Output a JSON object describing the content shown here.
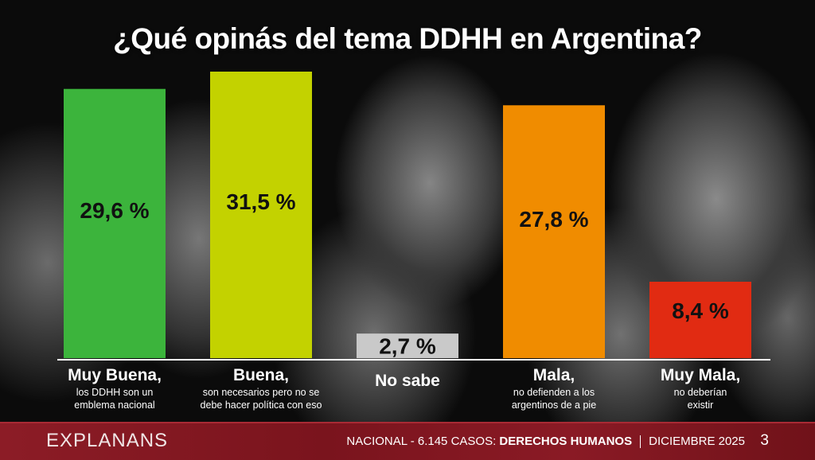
{
  "title": "¿Qué opinás del tema DDHH en Argentina?",
  "chart_data": {
    "type": "bar",
    "title": "¿Qué opinás del tema DDHH en Argentina?",
    "unit": "%",
    "ylim": [
      0,
      31.5
    ],
    "categories": [
      {
        "title": "Muy Buena,",
        "subtitle": [
          "los DDHH son un",
          "emblema nacional"
        ],
        "value": 29.6,
        "label": "29,6 %",
        "color": "#3cb43c"
      },
      {
        "title": "Buena,",
        "subtitle": [
          "son necesarios pero no se",
          "debe hacer política con eso"
        ],
        "value": 31.5,
        "label": "31,5 %",
        "color": "#c3d200"
      },
      {
        "title": "No sabe",
        "subtitle": [],
        "value": 2.7,
        "label": "2,7 %",
        "color": "#c9c9c9"
      },
      {
        "title": "Mala,",
        "subtitle": [
          "no defienden a los",
          "argentinos de a pie"
        ],
        "value": 27.8,
        "label": "27,8 %",
        "color": "#f08c00"
      },
      {
        "title": "Muy Mala,",
        "subtitle": [
          "no deberían",
          "existir"
        ],
        "value": 8.4,
        "label": "8,4 %",
        "color": "#e12b12"
      }
    ]
  },
  "footer": {
    "brand": "EXPLANANS",
    "scope": "NACIONAL - 6.145 CASOS: ",
    "topic": "DERECHOS HUMANOS",
    "date": "DICIEMBRE 2025",
    "page": "3"
  }
}
